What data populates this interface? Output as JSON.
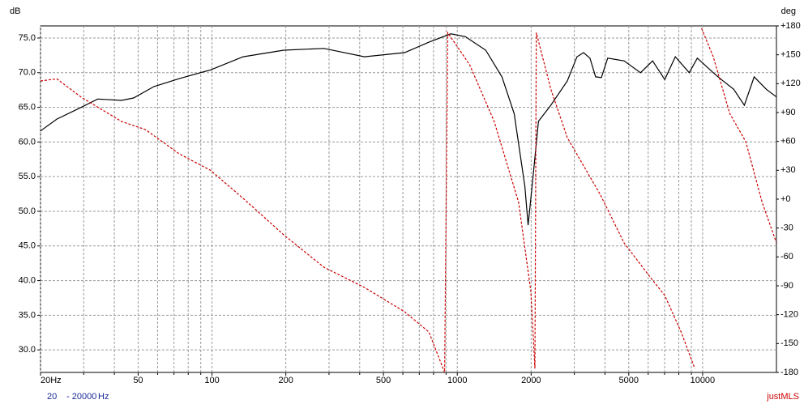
{
  "chart_data": {
    "type": "line",
    "ylabel": "dB",
    "y2label": "deg",
    "xscale": "log",
    "xlim": [
      20,
      20000
    ],
    "xticks": [
      {
        "value": 20,
        "label": "20Hz"
      },
      50,
      100,
      200,
      500,
      1000,
      2000,
      5000,
      10000
    ],
    "xminor": [
      30,
      40,
      60,
      70,
      80,
      90,
      300,
      400,
      600,
      700,
      800,
      900,
      3000,
      4000,
      6000,
      7000,
      8000,
      9000
    ],
    "ylim": [
      26.75,
      76.75
    ],
    "yticks": [
      {
        "value": 75,
        "label": "75.0"
      },
      {
        "value": 70,
        "label": "70.0"
      },
      {
        "value": 65,
        "label": "65.0"
      },
      {
        "value": 60,
        "label": "60.0"
      },
      {
        "value": 55,
        "label": "55.0"
      },
      {
        "value": 50,
        "label": "50.0"
      },
      {
        "value": 45,
        "label": "45.0"
      },
      {
        "value": 40,
        "label": "40.0"
      },
      {
        "value": 35,
        "label": "35.0"
      },
      {
        "value": 30,
        "label": "30.0"
      }
    ],
    "y2lim": [
      -180,
      180
    ],
    "y2ticks": [
      {
        "value": 180,
        "label": "+180"
      },
      {
        "value": 150,
        "label": "+150"
      },
      {
        "value": 120,
        "label": "+120"
      },
      {
        "value": 90,
        "label": "+90"
      },
      {
        "value": 60,
        "label": "+60"
      },
      {
        "value": 30,
        "label": "+30"
      },
      {
        "value": 0,
        "label": "+0"
      },
      -30,
      -60,
      -90,
      -120,
      -150,
      -180
    ],
    "grid": true,
    "series": [
      {
        "color": "#000000",
        "linestyle": "solid",
        "x": [
          20,
          23.3,
          29.3,
          34.2,
          42.8,
          47.9,
          58,
          73.6,
          98.5,
          134,
          196,
          286,
          418,
          610,
          766,
          941,
          1079,
          1306,
          1520,
          1705,
          1886,
          1944,
          2018,
          2143,
          2405,
          2807,
          3075,
          3270,
          3474,
          3664,
          3866,
          4104,
          4785,
          5583,
          6255,
          7013,
          7740,
          8818,
          9519,
          11053,
          11930,
          13390,
          14800,
          16220,
          18180,
          20000
        ],
        "values": [
          61.6,
          63.3,
          65,
          66.2,
          66,
          66.35,
          68,
          69.15,
          70.4,
          72.3,
          73.25,
          73.5,
          72.3,
          72.9,
          74.4,
          75.6,
          75.2,
          73.25,
          69.4,
          64.1,
          53.6,
          48,
          53.6,
          63,
          65.3,
          68.8,
          72.3,
          72.9,
          72.1,
          69.4,
          69.3,
          72.1,
          71.7,
          70,
          71.7,
          69,
          72.3,
          70,
          72.1,
          70,
          69,
          67.6,
          65.3,
          69.4,
          67.6,
          66.5
        ]
      },
      {
        "color": "#cc0000",
        "linestyle": "dashed",
        "axis": "y2",
        "x": [
          20,
          23.3,
          29.3,
          42.8,
          53.5,
          73.6,
          98.5,
          134,
          196,
          286,
          418,
          610,
          766,
          888,
          914,
          1123,
          1414,
          1779,
          1995,
          2073,
          2100,
          2405,
          2807,
          3822,
          4785,
          6030,
          7013,
          8174,
          9300,
          9600,
          9900,
          11053,
          12900,
          15000,
          17500,
          20000
        ],
        "values": [
          122.8,
          125,
          106,
          80.7,
          72.3,
          47,
          30,
          0.8,
          -37,
          -70.7,
          -91.7,
          -117,
          -138,
          -180,
          173,
          139.6,
          80.7,
          -3.4,
          -96,
          -176,
          173,
          114.4,
          64,
          5,
          -45.4,
          -79,
          -100,
          -138,
          -176,
          null,
          177.5,
          148,
          89,
          59.7,
          -3.4,
          -45.4
        ]
      }
    ],
    "footer_from": "20",
    "footer_to": "- 20000",
    "footer_unit": "Hz",
    "brand": "justMLS"
  }
}
